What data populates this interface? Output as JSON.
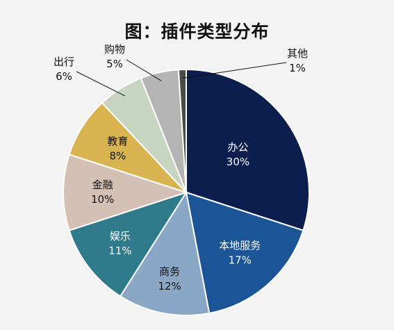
{
  "chart_data": {
    "type": "pie",
    "title": "图：插件类型分布",
    "slices": [
      {
        "label": "办公",
        "value": 30,
        "display": "30%",
        "color": "#0b1e4e",
        "text_color": "#ffffff"
      },
      {
        "label": "本地服务",
        "value": 17,
        "display": "17%",
        "color": "#1b5597",
        "text_color": "#ffffff"
      },
      {
        "label": "商务",
        "value": 12,
        "display": "12%",
        "color": "#8aa7c6",
        "text_color": "#111111"
      },
      {
        "label": "娱乐",
        "value": 11,
        "display": "11%",
        "color": "#2f7b8c",
        "text_color": "#ffffff"
      },
      {
        "label": "金融",
        "value": 10,
        "display": "10%",
        "color": "#d4c0b4",
        "text_color": "#111111"
      },
      {
        "label": "教育",
        "value": 8,
        "display": "8%",
        "color": "#d9b34f",
        "text_color": "#111111"
      },
      {
        "label": "出行",
        "value": 6,
        "display": "6%",
        "color": "#c7d4c0",
        "text_color": "#111111"
      },
      {
        "label": "购物",
        "value": 5,
        "display": "5%",
        "color": "#b4b4b4",
        "text_color": "#111111"
      },
      {
        "label": "其他",
        "value": 1,
        "display": "1%",
        "color": "#4a4a4a",
        "text_color": "#111111"
      }
    ]
  }
}
